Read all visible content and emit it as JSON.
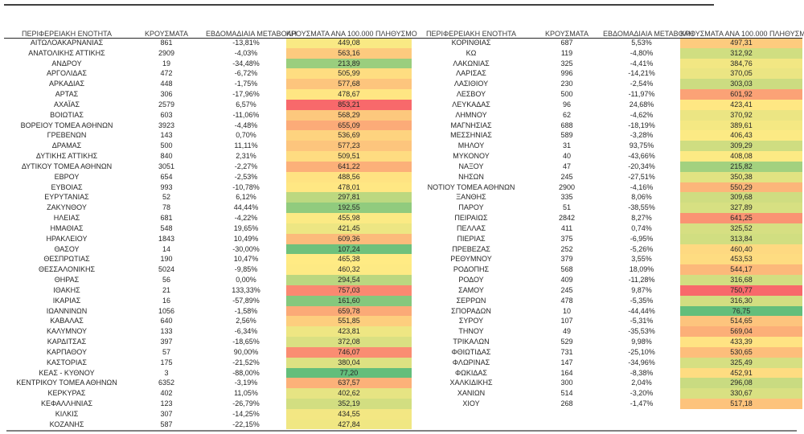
{
  "page": {
    "background": "#ffffff"
  },
  "columns": {
    "region": "ΠΕΡΙΦΕΡΕΙΑΚΗ ΕΝΟΤΗΤΑ",
    "cases": "ΚΡΟΥΣΜΑΤΑ",
    "weekly_change": "ΕΒΔΟΜΑΔΙΑΙΑ ΜΕΤΑΒΟΛΗ",
    "per_100k": "ΚΡΟΥΣΜΑΤΑ ΑΝΑ 100.000 ΠΛΗΘΥΣΜΟ"
  },
  "color_scale": {
    "min_green": "#63BE7B",
    "mid_yellow": "#FFEB84",
    "max_red": "#F8696B"
  },
  "left_table": {
    "rows": [
      {
        "region": "ΑΙΤΩΛΟΑΚΑΡΝΑΝΙΑΣ",
        "cases": "861",
        "weekly_change": "-13,81%",
        "per_100k": "449,08"
      },
      {
        "region": "ΑΝΑΤΟΛΙΚΗΣ ΑΤΤΙΚΗΣ",
        "cases": "2909",
        "weekly_change": "-4,03%",
        "per_100k": "563,16"
      },
      {
        "region": "ΑΝΔΡΟΥ",
        "cases": "19",
        "weekly_change": "-34,48%",
        "per_100k": "213,89"
      },
      {
        "region": "ΑΡΓΟΛΙΔΑΣ",
        "cases": "472",
        "weekly_change": "-6,72%",
        "per_100k": "505,99"
      },
      {
        "region": "ΑΡΚΑΔΙΑΣ",
        "cases": "448",
        "weekly_change": "-1,75%",
        "per_100k": "577,68"
      },
      {
        "region": "ΑΡΤΑΣ",
        "cases": "306",
        "weekly_change": "-17,96%",
        "per_100k": "478,67"
      },
      {
        "region": "ΑΧΑΪΑΣ",
        "cases": "2579",
        "weekly_change": "6,57%",
        "per_100k": "853,21"
      },
      {
        "region": "ΒΟΙΩΤΙΑΣ",
        "cases": "603",
        "weekly_change": "-11,06%",
        "per_100k": "568,29"
      },
      {
        "region": "ΒΟΡΕΙΟΥ ΤΟΜΕΑ ΑΘΗΝΩΝ",
        "cases": "3923",
        "weekly_change": "-4,48%",
        "per_100k": "655,09"
      },
      {
        "region": "ΓΡΕΒΕΝΩΝ",
        "cases": "143",
        "weekly_change": "0,70%",
        "per_100k": "536,69"
      },
      {
        "region": "ΔΡΑΜΑΣ",
        "cases": "500",
        "weekly_change": "11,11%",
        "per_100k": "577,23"
      },
      {
        "region": "ΔΥΤΙΚΗΣ ΑΤΤΙΚΗΣ",
        "cases": "840",
        "weekly_change": "2,31%",
        "per_100k": "509,51"
      },
      {
        "region": "ΔΥΤΙΚΟΥ ΤΟΜΕΑ ΑΘΗΝΩΝ",
        "cases": "3051",
        "weekly_change": "-2,27%",
        "per_100k": "641,22"
      },
      {
        "region": "ΕΒΡΟΥ",
        "cases": "654",
        "weekly_change": "-2,53%",
        "per_100k": "488,56"
      },
      {
        "region": "ΕΥΒΟΙΑΣ",
        "cases": "993",
        "weekly_change": "-10,78%",
        "per_100k": "478,01"
      },
      {
        "region": "ΕΥΡΥΤΑΝΙΑΣ",
        "cases": "52",
        "weekly_change": "6,12%",
        "per_100k": "297,81"
      },
      {
        "region": "ΖΑΚΥΝΘΟΥ",
        "cases": "78",
        "weekly_change": "44,44%",
        "per_100k": "192,55"
      },
      {
        "region": "ΗΛΕΙΑΣ",
        "cases": "681",
        "weekly_change": "-4,22%",
        "per_100k": "455,98"
      },
      {
        "region": "ΗΜΑΘΙΑΣ",
        "cases": "548",
        "weekly_change": "19,65%",
        "per_100k": "421,45"
      },
      {
        "region": "ΗΡΑΚΛΕΙΟΥ",
        "cases": "1843",
        "weekly_change": "10,49%",
        "per_100k": "609,36"
      },
      {
        "region": "ΘΑΣΟΥ",
        "cases": "14",
        "weekly_change": "-30,00%",
        "per_100k": "107,24"
      },
      {
        "region": "ΘΕΣΠΡΩΤΙΑΣ",
        "cases": "190",
        "weekly_change": "10,47%",
        "per_100k": "465,38"
      },
      {
        "region": "ΘΕΣΣΑΛΟΝΙΚΗΣ",
        "cases": "5024",
        "weekly_change": "-9,85%",
        "per_100k": "460,32"
      },
      {
        "region": "ΘΗΡΑΣ",
        "cases": "56",
        "weekly_change": "0,00%",
        "per_100k": "294,54"
      },
      {
        "region": "ΙΘΑΚΗΣ",
        "cases": "21",
        "weekly_change": "133,33%",
        "per_100k": "757,03"
      },
      {
        "region": "ΙΚΑΡΙΑΣ",
        "cases": "16",
        "weekly_change": "-57,89%",
        "per_100k": "161,60"
      },
      {
        "region": "ΙΩΑΝΝΙΝΩΝ",
        "cases": "1056",
        "weekly_change": "-1,58%",
        "per_100k": "659,78"
      },
      {
        "region": "ΚΑΒΑΛΑΣ",
        "cases": "640",
        "weekly_change": "2,56%",
        "per_100k": "551,85"
      },
      {
        "region": "ΚΑΛΥΜΝΟΥ",
        "cases": "133",
        "weekly_change": "-6,34%",
        "per_100k": "423,81"
      },
      {
        "region": "ΚΑΡΔΙΤΣΑΣ",
        "cases": "397",
        "weekly_change": "-18,65%",
        "per_100k": "372,08"
      },
      {
        "region": "ΚΑΡΠΑΘΟΥ",
        "cases": "57",
        "weekly_change": "90,00%",
        "per_100k": "746,07"
      },
      {
        "region": "ΚΑΣΤΟΡΙΑΣ",
        "cases": "175",
        "weekly_change": "-21,52%",
        "per_100k": "380,04"
      },
      {
        "region": "ΚΕΑΣ - ΚΥΘΝΟΥ",
        "cases": "3",
        "weekly_change": "-88,00%",
        "per_100k": "77,20"
      },
      {
        "region": "ΚΕΝΤΡΙΚΟΥ ΤΟΜΕΑ ΑΘΗΝΩΝ",
        "cases": "6352",
        "weekly_change": "-3,19%",
        "per_100k": "637,57"
      },
      {
        "region": "ΚΕΡΚΥΡΑΣ",
        "cases": "402",
        "weekly_change": "11,05%",
        "per_100k": "402,62"
      },
      {
        "region": "ΚΕΦΑΛΛΗΝΙΑΣ",
        "cases": "123",
        "weekly_change": "-26,79%",
        "per_100k": "352,19"
      },
      {
        "region": "ΚΙΛΚΙΣ",
        "cases": "307",
        "weekly_change": "-14,25%",
        "per_100k": "434,55"
      },
      {
        "region": "ΚΟΖΑΝΗΣ",
        "cases": "587",
        "weekly_change": "-22,15%",
        "per_100k": "427,84"
      }
    ]
  },
  "right_table": {
    "rows": [
      {
        "region": "ΚΟΡΙΝΘΙΑΣ",
        "cases": "687",
        "weekly_change": "5,53%",
        "per_100k": "497,31"
      },
      {
        "region": "ΚΩ",
        "cases": "119",
        "weekly_change": "-4,80%",
        "per_100k": "312,92"
      },
      {
        "region": "ΛΑΚΩΝΙΑΣ",
        "cases": "325",
        "weekly_change": "-4,41%",
        "per_100k": "384,76"
      },
      {
        "region": "ΛΑΡΙΣΑΣ",
        "cases": "996",
        "weekly_change": "-14,21%",
        "per_100k": "370,05"
      },
      {
        "region": "ΛΑΣΙΘΙΟΥ",
        "cases": "230",
        "weekly_change": "-2,54%",
        "per_100k": "303,03"
      },
      {
        "region": "ΛΕΣΒΟΥ",
        "cases": "500",
        "weekly_change": "-11,97%",
        "per_100k": "601,92"
      },
      {
        "region": "ΛΕΥΚΑΔΑΣ",
        "cases": "96",
        "weekly_change": "24,68%",
        "per_100k": "423,41"
      },
      {
        "region": "ΛΗΜΝΟΥ",
        "cases": "62",
        "weekly_change": "-4,62%",
        "per_100k": "370,92"
      },
      {
        "region": "ΜΑΓΝΗΣΙΑΣ",
        "cases": "688",
        "weekly_change": "-18,19%",
        "per_100k": "389,61"
      },
      {
        "region": "ΜΕΣΣΗΝΙΑΣ",
        "cases": "589",
        "weekly_change": "-3,28%",
        "per_100k": "406,43"
      },
      {
        "region": "ΜΗΛΟΥ",
        "cases": "31",
        "weekly_change": "93,75%",
        "per_100k": "309,29"
      },
      {
        "region": "ΜΥΚΟΝΟΥ",
        "cases": "40",
        "weekly_change": "-43,66%",
        "per_100k": "408,08"
      },
      {
        "region": "ΝΑΞΟΥ",
        "cases": "47",
        "weekly_change": "-20,34%",
        "per_100k": "215,82"
      },
      {
        "region": "ΝΗΣΩΝ",
        "cases": "245",
        "weekly_change": "-27,51%",
        "per_100k": "350,38"
      },
      {
        "region": "ΝΟΤΙΟΥ ΤΟΜΕΑ ΑΘΗΝΩΝ",
        "cases": "2900",
        "weekly_change": "-4,16%",
        "per_100k": "550,29"
      },
      {
        "region": "ΞΑΝΘΗΣ",
        "cases": "335",
        "weekly_change": "8,06%",
        "per_100k": "309,68"
      },
      {
        "region": "ΠΑΡΟΥ",
        "cases": "51",
        "weekly_change": "-38,55%",
        "per_100k": "327,89"
      },
      {
        "region": "ΠΕΙΡΑΙΩΣ",
        "cases": "2842",
        "weekly_change": "8,27%",
        "per_100k": "641,25"
      },
      {
        "region": "ΠΕΛΛΑΣ",
        "cases": "411",
        "weekly_change": "0,74%",
        "per_100k": "325,52"
      },
      {
        "region": "ΠΙΕΡΙΑΣ",
        "cases": "375",
        "weekly_change": "-6,95%",
        "per_100k": "313,84"
      },
      {
        "region": "ΠΡΕΒΕΖΑΣ",
        "cases": "252",
        "weekly_change": "-5,26%",
        "per_100k": "460,40"
      },
      {
        "region": "ΡΕΘΥΜΝΟΥ",
        "cases": "379",
        "weekly_change": "3,55%",
        "per_100k": "453,53"
      },
      {
        "region": "ΡΟΔΟΠΗΣ",
        "cases": "568",
        "weekly_change": "18,09%",
        "per_100k": "544,17"
      },
      {
        "region": "ΡΟΔΟΥ",
        "cases": "409",
        "weekly_change": "-11,28%",
        "per_100k": "316,68"
      },
      {
        "region": "ΣΑΜΟΥ",
        "cases": "245",
        "weekly_change": "9,87%",
        "per_100k": "750,77"
      },
      {
        "region": "ΣΕΡΡΩΝ",
        "cases": "478",
        "weekly_change": "-5,35%",
        "per_100k": "316,30"
      },
      {
        "region": "ΣΠΟΡΑΔΩΝ",
        "cases": "10",
        "weekly_change": "-44,44%",
        "per_100k": "76,75"
      },
      {
        "region": "ΣΥΡΟΥ",
        "cases": "107",
        "weekly_change": "-5,31%",
        "per_100k": "514,65"
      },
      {
        "region": "ΤΗΝΟΥ",
        "cases": "49",
        "weekly_change": "-35,53%",
        "per_100k": "569,04"
      },
      {
        "region": "ΤΡΙΚΑΛΩΝ",
        "cases": "529",
        "weekly_change": "9,98%",
        "per_100k": "433,39"
      },
      {
        "region": "ΦΘΙΩΤΙΔΑΣ",
        "cases": "731",
        "weekly_change": "-25,10%",
        "per_100k": "530,65"
      },
      {
        "region": "ΦΛΩΡΙΝΑΣ",
        "cases": "147",
        "weekly_change": "-34,96%",
        "per_100k": "325,49"
      },
      {
        "region": "ΦΩΚΙΔΑΣ",
        "cases": "164",
        "weekly_change": "-8,38%",
        "per_100k": "452,91"
      },
      {
        "region": "ΧΑΛΚΙΔΙΚΗΣ",
        "cases": "300",
        "weekly_change": "2,04%",
        "per_100k": "296,08"
      },
      {
        "region": "ΧΑΝΙΩΝ",
        "cases": "514",
        "weekly_change": "-3,20%",
        "per_100k": "330,67"
      },
      {
        "region": "ΧΙΟΥ",
        "cases": "268",
        "weekly_change": "-1,47%",
        "per_100k": "517,18"
      }
    ]
  }
}
